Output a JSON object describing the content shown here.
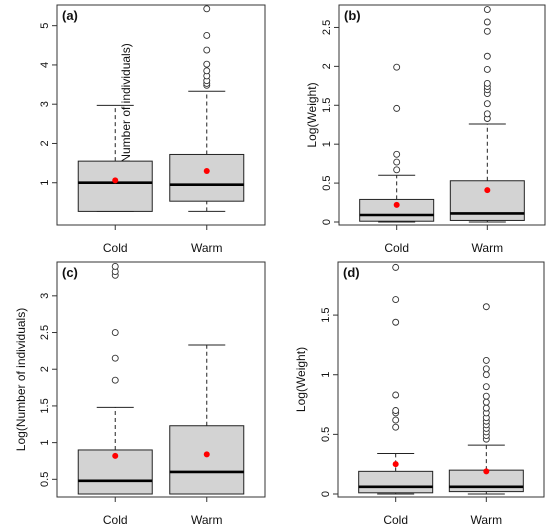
{
  "chart_data": [
    {
      "type": "box",
      "label": "(a)",
      "ylabel": "Log(Number of individuals)",
      "ylim": [
        0,
        5.45
      ],
      "yticks": [
        1,
        2,
        3,
        4,
        5
      ],
      "categories": [
        "Cold",
        "Warm"
      ],
      "boxes": [
        {
          "q1": 0.27,
          "median": 1.0,
          "q3": 1.55,
          "lower_whisker": 0.27,
          "upper_whisker": 2.97,
          "mean": 1.06,
          "outliers": []
        },
        {
          "q1": 0.53,
          "median": 0.95,
          "q3": 1.72,
          "lower_whisker": 0.27,
          "upper_whisker": 3.33,
          "mean": 1.3,
          "outliers": [
            3.48,
            3.53,
            3.6,
            3.72,
            3.85,
            4.02,
            4.38,
            4.75,
            5.43
          ]
        }
      ]
    },
    {
      "type": "box",
      "label": "(b)",
      "ylabel": "Log(Weight)",
      "ylim": [
        0,
        2.75
      ],
      "yticks": [
        0.0,
        0.5,
        1.0,
        1.5,
        2.0,
        2.5
      ],
      "categories": [
        "Cold",
        "Warm"
      ],
      "boxes": [
        {
          "q1": 0.01,
          "median": 0.09,
          "q3": 0.29,
          "lower_whisker": 0.0,
          "upper_whisker": 0.6,
          "mean": 0.22,
          "outliers": [
            0.67,
            0.77,
            0.87,
            1.46,
            1.99
          ]
        },
        {
          "q1": 0.02,
          "median": 0.11,
          "q3": 0.53,
          "lower_whisker": 0.0,
          "upper_whisker": 1.26,
          "mean": 0.41,
          "outliers": [
            1.33,
            1.39,
            1.52,
            1.65,
            1.7,
            1.74,
            1.78,
            1.96,
            2.13,
            2.45,
            2.57,
            2.73
          ]
        }
      ]
    },
    {
      "type": "box",
      "label": "(c)",
      "ylabel": "Log(Number of individuals)",
      "ylim": [
        0.3,
        3.42
      ],
      "yticks": [
        0.5,
        1.0,
        1.5,
        2.0,
        2.5,
        3.0
      ],
      "categories": [
        "Cold",
        "Warm"
      ],
      "boxes": [
        {
          "q1": 0.3,
          "median": 0.48,
          "q3": 0.9,
          "lower_whisker": 0.3,
          "upper_whisker": 1.48,
          "mean": 0.82,
          "outliers": [
            1.85,
            2.15,
            2.5,
            3.28,
            3.33,
            3.4
          ]
        },
        {
          "q1": 0.3,
          "median": 0.6,
          "q3": 1.23,
          "lower_whisker": 0.3,
          "upper_whisker": 2.33,
          "mean": 0.84,
          "outliers": []
        }
      ]
    },
    {
      "type": "box",
      "label": "(d)",
      "ylabel": "Log(Weight)",
      "ylim": [
        0,
        1.92
      ],
      "yticks": [
        0.0,
        0.5,
        1.0,
        1.5
      ],
      "categories": [
        "Cold",
        "Warm"
      ],
      "boxes": [
        {
          "q1": 0.01,
          "median": 0.06,
          "q3": 0.19,
          "lower_whisker": 0.0,
          "upper_whisker": 0.34,
          "mean": 0.25,
          "outliers": [
            0.56,
            0.62,
            0.68,
            0.7,
            0.83,
            1.44,
            1.63,
            1.9
          ]
        },
        {
          "q1": 0.02,
          "median": 0.06,
          "q3": 0.2,
          "lower_whisker": 0.0,
          "upper_whisker": 0.41,
          "mean": 0.19,
          "outliers": [
            0.46,
            0.49,
            0.52,
            0.55,
            0.58,
            0.61,
            0.64,
            0.68,
            0.72,
            0.77,
            0.82,
            0.9,
            1.0,
            1.05,
            1.12,
            1.57
          ]
        }
      ]
    }
  ],
  "colors": {
    "box_fill": "#d3d3d3",
    "mean_marker": "#ff0000",
    "median_line": "#000000"
  }
}
